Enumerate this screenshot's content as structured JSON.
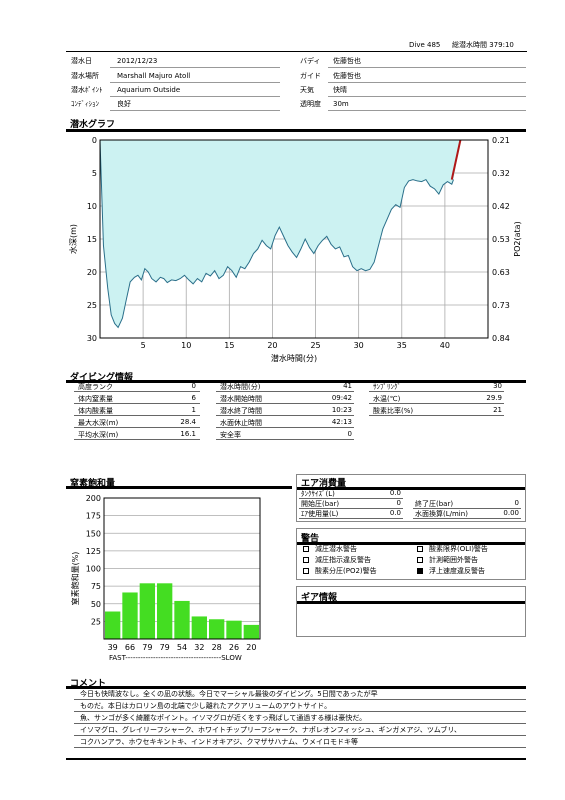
{
  "header": {
    "dive_label": "Dive 485",
    "total_label": "総潜水時間 379:10"
  },
  "info": {
    "date_label": "潜水日",
    "date": "2012/12/23",
    "buddy_label": "バディ",
    "buddy": "佐藤哲也",
    "place_label": "潜水場所",
    "place": "Marshall Majuro Atoll",
    "guide_label": "ガイド",
    "guide": "佐藤哲也",
    "point_label": "潜水ﾎﾟｲﾝﾄ",
    "point": "Aquarium Outside",
    "weather_label": "天気",
    "weather": "快晴",
    "condition_label": "ｺﾝﾃﾞｨｼｮﾝ",
    "condition": "良好",
    "visibility_label": "透明度",
    "visibility": "30m"
  },
  "dive_graph": {
    "title": "潜水グラフ",
    "xlabel": "潜水時間(分)",
    "ylabel": "水深(m)",
    "y2label": "PO2(ata)"
  },
  "chart_data": [
    {
      "type": "area",
      "title": "潜水グラフ",
      "xlabel": "潜水時間(分)",
      "ylabel": "水深(m)",
      "y2label": "PO2(ata)",
      "xlim": [
        0,
        45
      ],
      "ylim": [
        30,
        0
      ],
      "x_ticks": [
        5,
        10,
        15,
        20,
        25,
        30,
        35,
        40
      ],
      "y_ticks": [
        0,
        5,
        10,
        15,
        20,
        25,
        30
      ],
      "y2_ticks": [
        "0.21",
        "0.32",
        "0.42",
        "0.53",
        "0.63",
        "0.73",
        "0.84"
      ],
      "grid": true,
      "series": [
        {
          "x": [
            0,
            0.4,
            0.9,
            1.3,
            1.7,
            2.1,
            2.6,
            3.0,
            3.5,
            4.0,
            4.4,
            4.8,
            5.2,
            5.6,
            6.0,
            6.5,
            7.0,
            7.4,
            7.8,
            8.3,
            8.8,
            9.3,
            9.8,
            10.3,
            10.8,
            11.3,
            11.8,
            12.3,
            12.8,
            13.3,
            13.8,
            14.3,
            14.8,
            15.3,
            15.8,
            16.3,
            16.8,
            17.3,
            17.8,
            18.3,
            18.8,
            19.3,
            19.8,
            20.3,
            20.8,
            21.3,
            21.8,
            22.3,
            22.8,
            23.3,
            23.8,
            24.3,
            24.8,
            25.3,
            25.8,
            26.3,
            26.8,
            27.3,
            27.8,
            28.3,
            28.8,
            29.3,
            29.8,
            30.3,
            30.8,
            31.3,
            31.8,
            32.3,
            32.8,
            33.3,
            33.8,
            34.3,
            34.8,
            35.3,
            35.8,
            36.3,
            36.8,
            37.3,
            37.8,
            38.3,
            38.8,
            39.3,
            39.8,
            40.3,
            40.8,
            41.0
          ],
          "values": [
            0,
            16.0,
            22.5,
            26.5,
            27.8,
            28.4,
            27.0,
            24.5,
            21.5,
            20.8,
            20.5,
            21.2,
            19.5,
            20.0,
            21.0,
            21.5,
            20.8,
            21.0,
            21.6,
            21.2,
            21.3,
            21.0,
            20.5,
            21.2,
            21.8,
            21.0,
            21.5,
            20.2,
            20.6,
            19.8,
            21.0,
            20.5,
            19.2,
            19.8,
            20.8,
            19.2,
            19.5,
            18.5,
            17.2,
            16.5,
            15.2,
            16.0,
            16.5,
            14.5,
            13.2,
            14.6,
            16.0,
            17.0,
            17.8,
            16.5,
            15.0,
            16.3,
            17.2,
            16.0,
            15.2,
            14.6,
            15.8,
            16.5,
            16.2,
            17.7,
            17.5,
            19.2,
            19.8,
            19.5,
            19.8,
            19.6,
            18.5,
            16.0,
            13.5,
            12.0,
            10.5,
            9.8,
            10.2,
            7.2,
            6.2,
            6.0,
            6.2,
            6.3,
            6.0,
            7.0,
            7.4,
            8.2,
            6.8,
            6.3,
            6.7,
            6.0
          ],
          "name": ""
        },
        {
          "type": "line",
          "x": [
            40.8,
            41.8
          ],
          "values": [
            6.0,
            0
          ],
          "color": "#b01818",
          "name": ""
        }
      ]
    },
    {
      "type": "bar",
      "title": "窒素飽和量",
      "ylabel": "窒素飽和量(%)",
      "categories": [
        "39",
        "66",
        "79",
        "79",
        "54",
        "32",
        "28",
        "26",
        "20"
      ],
      "values": [
        39,
        66,
        79,
        79,
        54,
        32,
        28,
        26,
        20
      ],
      "ylim": [
        0,
        200
      ],
      "y_ticks": [
        25,
        50,
        75,
        100,
        125,
        150,
        175,
        200
      ],
      "grid": true
    }
  ],
  "diving_info": {
    "title": "ダイビング情報",
    "col1": [
      {
        "label": "高度ランク",
        "value": "0"
      },
      {
        "label": "体内窒素量",
        "value": "6"
      },
      {
        "label": "体内酸素量",
        "value": "1"
      },
      {
        "label": "最大水深(m)",
        "value": "28.4"
      },
      {
        "label": "平均水深(m)",
        "value": "16.1"
      }
    ],
    "col2": [
      {
        "label": "潜水時間(分)",
        "value": "41"
      },
      {
        "label": "潜水開始時間",
        "value": "09:42"
      },
      {
        "label": "潜水終了時間",
        "value": "10:23"
      },
      {
        "label": "水面休止時間",
        "value": "42:13"
      },
      {
        "label": "安全率",
        "value": "0"
      }
    ],
    "col3": [
      {
        "label": "ｻﾝﾌﾟﾘﾝｸﾞ",
        "value": "30"
      },
      {
        "label": "水温(℃)",
        "value": "29.9"
      },
      {
        "label": "酸素比率(%)",
        "value": "21"
      }
    ]
  },
  "nitrogen": {
    "title": "窒素飽和量",
    "ylabel": "窒素飽和量(%)",
    "fast_slow": "FAST--------------------------------------SLOW",
    "bar_color": "#44dd22"
  },
  "air": {
    "title": "エア消費量",
    "tank_label": "ﾀﾝｸｻｲｽﾞ(L)",
    "tank": "0.0",
    "start_label": "開始圧(bar)",
    "start": "0",
    "end_label": "終了圧(bar)",
    "end": "0",
    "used_label": "ｴｱ使用量(L)",
    "used": "0.0",
    "surface_label": "水面換算(L/min)",
    "surface": "0.00"
  },
  "warnings": {
    "title": "警告",
    "items": [
      {
        "label": "減圧潜水警告",
        "checked": false
      },
      {
        "label": "酸素限界(OLI)警告",
        "checked": false
      },
      {
        "label": "減圧指示違反警告",
        "checked": false
      },
      {
        "label": "計測範囲外警告",
        "checked": false
      },
      {
        "label": "酸素分圧(PO2)警告",
        "checked": false
      },
      {
        "label": "浮上速度違反警告",
        "checked": true
      }
    ]
  },
  "gear": {
    "title": "ギア情報"
  },
  "comment": {
    "title": "コメント",
    "lines": [
      "今日も快晴波なし。全くの凪の状態。今日でマーシャル最後のダイビング。5日間であったが早",
      "ものだ。本日はカロリン島の北端で少し離れたアクアリュームのアウトサイド。",
      "魚、サンゴが多く綺麗なポイント。イソマグロが近くをすっ飛ばして通過する様は豪快だ。",
      "イソマグロ、グレイリーフシャーク、ホワイトチップリーフシャーク、ナポレオンフィッシュ、ギンガメアジ、ツムブリ、",
      "コクハンアラ、ホウセキキントキ、インドオキアジ、クマザサハナム、ウメイロモドキ等"
    ]
  }
}
